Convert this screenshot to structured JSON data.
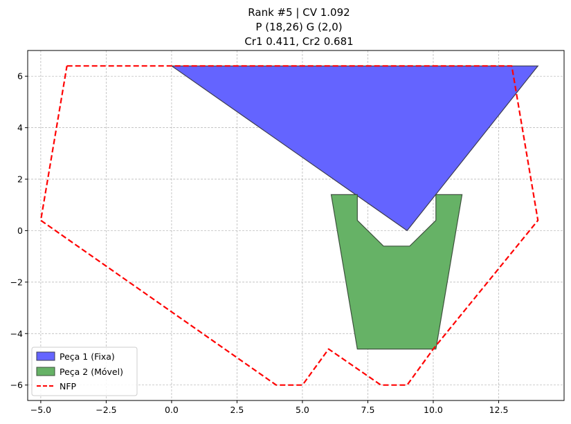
{
  "chart_data": {
    "type": "polygon-plot",
    "title_lines": [
      "Rank #5 | CV 1.092",
      "P (18,26) G (2,0)",
      "Cr1 0.411, Cr2 0.681"
    ],
    "xlim": [
      -5.5,
      15.0
    ],
    "ylim": [
      -6.6,
      7.0
    ],
    "x_ticks": [
      -5.0,
      -2.5,
      0.0,
      2.5,
      5.0,
      7.5,
      10.0,
      12.5
    ],
    "x_tick_labels": [
      "−5.0",
      "−2.5",
      "0.0",
      "2.5",
      "5.0",
      "7.5",
      "10.0",
      "12.5"
    ],
    "y_ticks": [
      -6,
      -4,
      -2,
      0,
      2,
      4,
      6
    ],
    "y_tick_labels": [
      "−6",
      "−4",
      "−2",
      "0",
      "2",
      "4",
      "6"
    ],
    "grid": true,
    "legend_position": "lower-left",
    "series": [
      {
        "name": "Peça 1 (Fixa)",
        "kind": "filled-polygon",
        "fill": "#6464ff",
        "edge": "#3c3c50",
        "points": [
          [
            0.0,
            6.4
          ],
          [
            14.0,
            6.4
          ],
          [
            9.0,
            0.0
          ]
        ]
      },
      {
        "name": "Peça 2 (Móvel)",
        "kind": "filled-polygon",
        "fill": "#66b266",
        "edge": "#3c503c",
        "points": [
          [
            6.1,
            1.4
          ],
          [
            7.1,
            1.4
          ],
          [
            7.1,
            0.4
          ],
          [
            8.1,
            -0.6
          ],
          [
            9.1,
            -0.6
          ],
          [
            10.1,
            0.4
          ],
          [
            10.1,
            1.4
          ],
          [
            11.1,
            1.4
          ],
          [
            10.1,
            -4.6
          ],
          [
            7.1,
            -4.6
          ]
        ]
      },
      {
        "name": "NFP",
        "kind": "dashed-line",
        "color": "#ff0000",
        "points": [
          [
            -4.0,
            6.4
          ],
          [
            13.0,
            6.4
          ],
          [
            14.0,
            0.4
          ],
          [
            10.0,
            -4.6
          ],
          [
            9.0,
            -6.0
          ],
          [
            8.0,
            -6.0
          ],
          [
            6.0,
            -4.6
          ],
          [
            5.0,
            -6.0
          ],
          [
            4.0,
            -6.0
          ],
          [
            -5.0,
            0.4
          ],
          [
            -4.0,
            6.4
          ]
        ]
      }
    ]
  }
}
